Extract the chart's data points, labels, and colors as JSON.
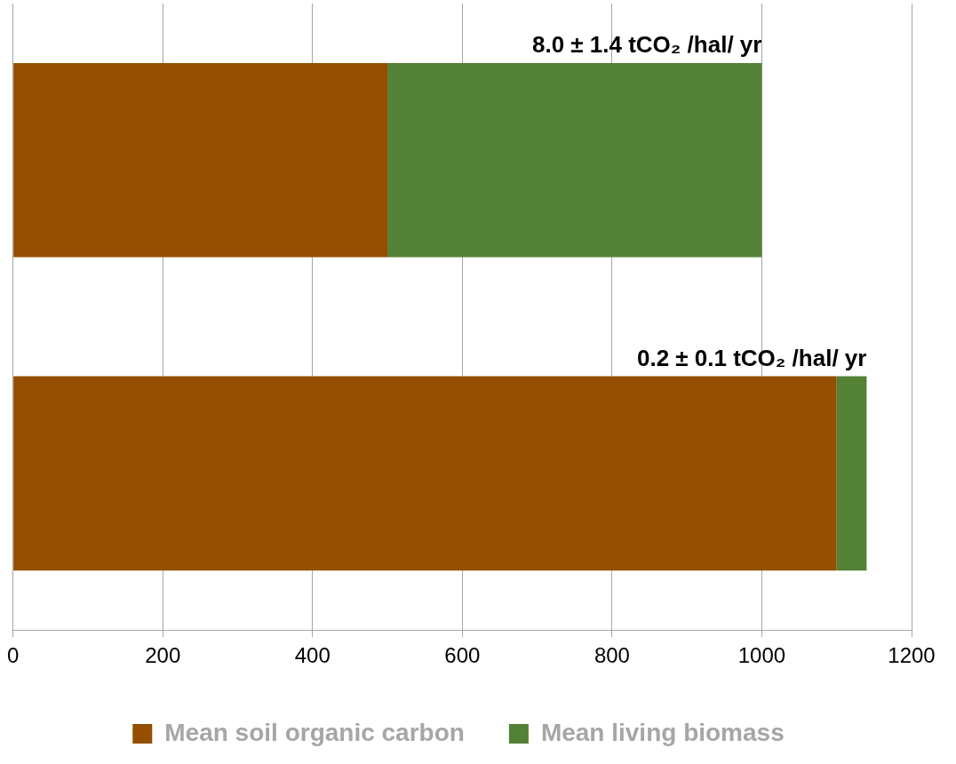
{
  "chart_data": {
    "type": "bar",
    "orientation": "horizontal",
    "stacked": true,
    "categories": [
      null,
      null
    ],
    "series": [
      {
        "name": "Mean soil organic carbon",
        "color": "#954f00",
        "values": [
          500,
          1100
        ]
      },
      {
        "name": "Mean living biomass",
        "color": "#538135",
        "values": [
          500,
          40
        ]
      }
    ],
    "xlim": [
      0,
      1200
    ],
    "xticks": [
      0,
      200,
      400,
      600,
      800,
      1000,
      1200
    ],
    "grid": "x",
    "legend": "bottom",
    "annotations": [
      "8.0 ± 1.4 tCO₂ /hal/ yr",
      "0.2 ± 0.1 tCO₂ /hal/ yr"
    ]
  }
}
